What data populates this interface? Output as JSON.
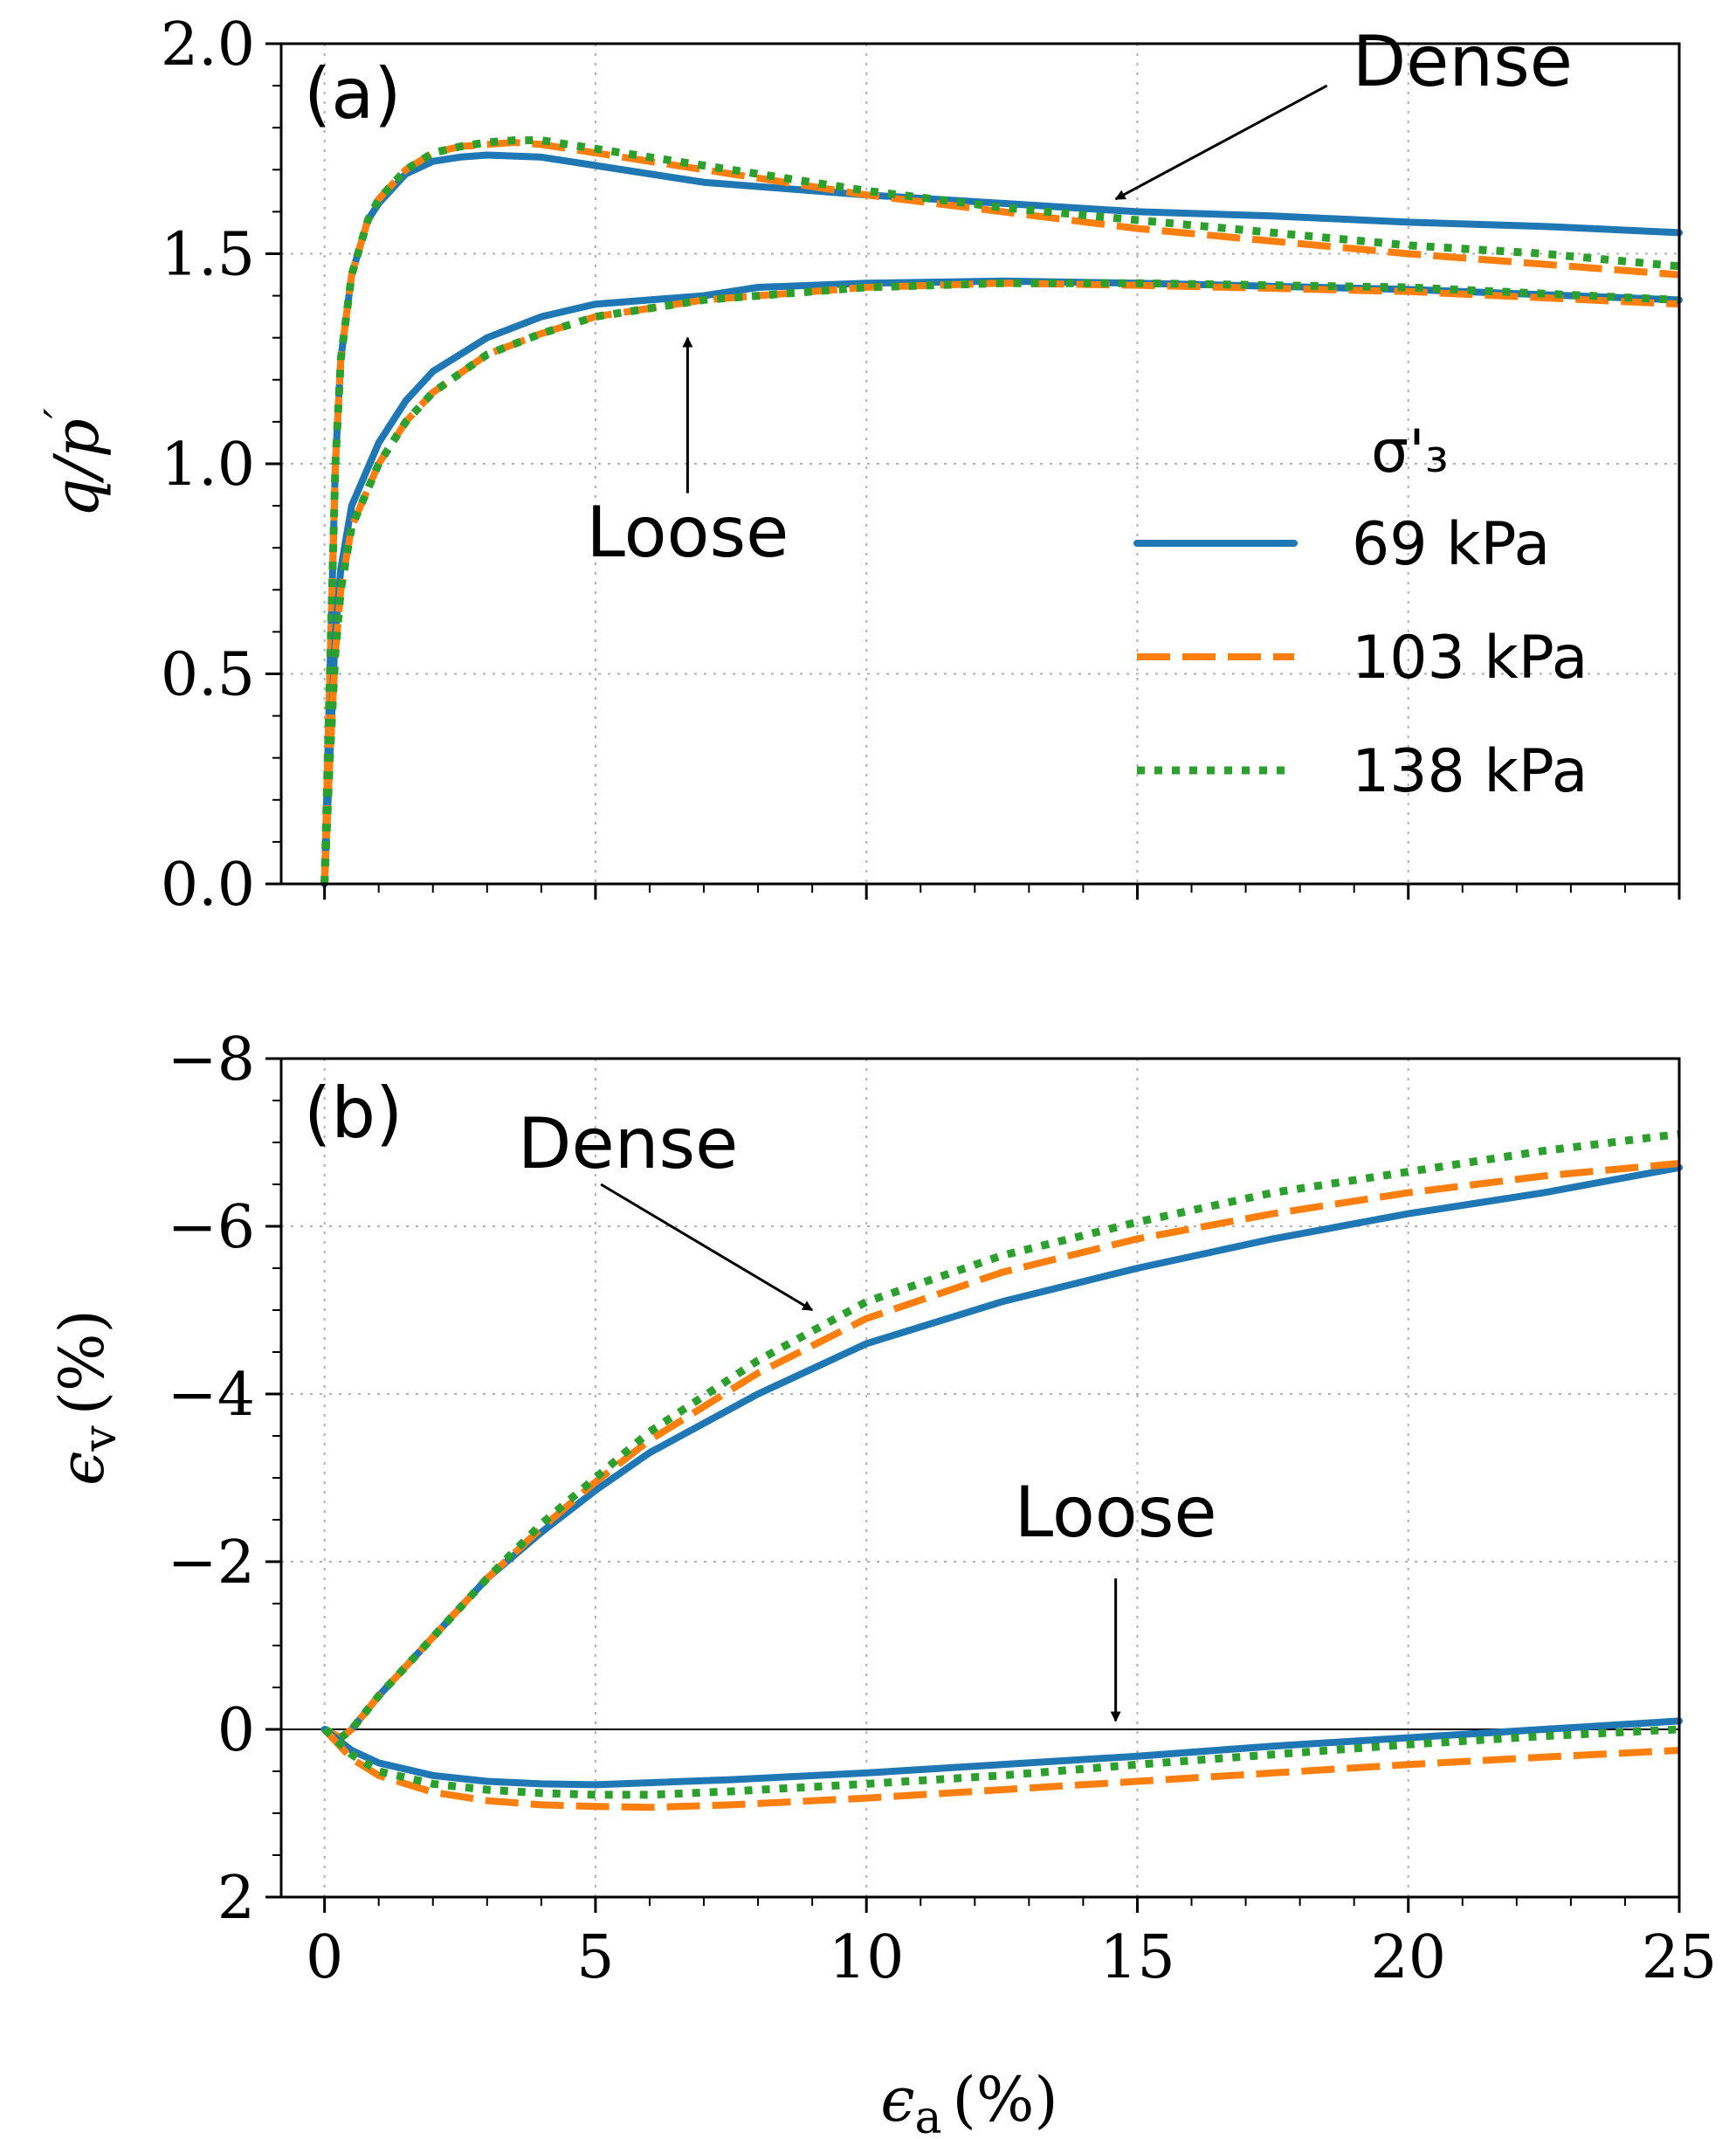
{
  "colors": {
    "s69": "#1f77b4",
    "s103": "#ff7f0e",
    "s138": "#2ca02c",
    "grid": "#b0b0b0"
  },
  "legend": {
    "title": "σ'₃",
    "entries": [
      {
        "key": "s69",
        "label": "69 kPa",
        "style": "solid"
      },
      {
        "key": "s103",
        "label": "103 kPa",
        "style": "dashed"
      },
      {
        "key": "s138",
        "label": "138 kPa",
        "style": "dotted"
      }
    ]
  },
  "chart_data": [
    {
      "type": "line",
      "panel_label": "(a)",
      "ylabel_main": "q/p",
      "ylabel_prime": "′",
      "xlim": [
        -0.8,
        25
      ],
      "ylim": [
        0,
        2
      ],
      "xticks": [
        0,
        5,
        10,
        15,
        20,
        25
      ],
      "yticks": [
        0,
        0.5,
        1.0,
        1.5,
        2.0
      ],
      "ytick_labels": [
        "0.0",
        "0.5",
        "1.0",
        "1.5",
        "2.0"
      ],
      "grid": true,
      "annotations": [
        {
          "text": "Dense",
          "text_at": [
            21,
            1.9
          ],
          "arrow_from": [
            18.5,
            1.9
          ],
          "arrow_to": [
            14.6,
            1.63
          ]
        },
        {
          "text": "Loose",
          "text_at": [
            6.7,
            0.78
          ],
          "arrow_from": [
            6.7,
            0.93
          ],
          "arrow_to": [
            6.7,
            1.3
          ]
        }
      ],
      "series": [
        {
          "name": "Dense 69 kPa",
          "key": "s69",
          "style": "solid",
          "x": [
            0,
            0.1,
            0.2,
            0.3,
            0.5,
            0.8,
            1.0,
            1.5,
            2.0,
            2.5,
            3.0,
            4.0,
            5.0,
            7.0,
            10.0,
            12.5,
            15.0,
            17.5,
            20.0,
            22.5,
            25.0
          ],
          "y": [
            0,
            0.5,
            1.0,
            1.25,
            1.45,
            1.58,
            1.62,
            1.69,
            1.72,
            1.73,
            1.735,
            1.73,
            1.71,
            1.67,
            1.64,
            1.62,
            1.6,
            1.59,
            1.575,
            1.565,
            1.55
          ]
        },
        {
          "name": "Dense 103 kPa",
          "key": "s103",
          "style": "dashed",
          "x": [
            0,
            0.1,
            0.2,
            0.3,
            0.5,
            0.8,
            1.0,
            1.5,
            2.0,
            2.5,
            3.0,
            3.5,
            4.0,
            5.0,
            7.0,
            10.0,
            12.5,
            15.0,
            17.5,
            20.0,
            22.5,
            25.0
          ],
          "y": [
            0,
            0.5,
            1.0,
            1.25,
            1.45,
            1.58,
            1.63,
            1.7,
            1.74,
            1.755,
            1.76,
            1.765,
            1.76,
            1.74,
            1.7,
            1.64,
            1.6,
            1.56,
            1.53,
            1.5,
            1.475,
            1.45
          ]
        },
        {
          "name": "Dense 138 kPa",
          "key": "s138",
          "style": "dotted",
          "x": [
            0,
            0.1,
            0.2,
            0.3,
            0.5,
            0.8,
            1.0,
            1.5,
            2.0,
            2.5,
            3.0,
            3.5,
            4.0,
            5.0,
            7.0,
            10.0,
            12.5,
            15.0,
            17.5,
            20.0,
            22.5,
            25.0
          ],
          "y": [
            0,
            0.5,
            1.0,
            1.25,
            1.45,
            1.58,
            1.63,
            1.7,
            1.74,
            1.755,
            1.765,
            1.77,
            1.77,
            1.75,
            1.71,
            1.65,
            1.61,
            1.58,
            1.55,
            1.52,
            1.5,
            1.47
          ]
        },
        {
          "name": "Loose 69 kPa",
          "key": "s69",
          "style": "solid",
          "x": [
            0,
            0.1,
            0.2,
            0.3,
            0.5,
            1.0,
            1.5,
            2.0,
            3.0,
            4.0,
            5.0,
            6.0,
            7.0,
            8.0,
            10.0,
            12.5,
            15.0,
            20.0,
            25.0
          ],
          "y": [
            0,
            0.3,
            0.6,
            0.75,
            0.9,
            1.05,
            1.15,
            1.22,
            1.3,
            1.35,
            1.38,
            1.39,
            1.4,
            1.42,
            1.43,
            1.435,
            1.43,
            1.415,
            1.39
          ]
        },
        {
          "name": "Loose 103 kPa",
          "key": "s103",
          "style": "dashed",
          "x": [
            0,
            0.1,
            0.2,
            0.3,
            0.5,
            1.0,
            1.5,
            2.0,
            3.0,
            4.0,
            5.0,
            6.0,
            7.0,
            8.0,
            10.0,
            12.5,
            15.0,
            20.0,
            25.0
          ],
          "y": [
            0,
            0.3,
            0.55,
            0.7,
            0.85,
            1.0,
            1.1,
            1.17,
            1.26,
            1.31,
            1.35,
            1.37,
            1.39,
            1.4,
            1.42,
            1.43,
            1.425,
            1.41,
            1.38
          ]
        },
        {
          "name": "Loose 138 kPa",
          "key": "s138",
          "style": "dotted",
          "x": [
            0,
            0.1,
            0.2,
            0.3,
            0.5,
            1.0,
            1.5,
            2.0,
            3.0,
            4.0,
            5.0,
            6.0,
            7.0,
            8.0,
            10.0,
            12.5,
            15.0,
            20.0,
            25.0
          ],
          "y": [
            0,
            0.3,
            0.55,
            0.7,
            0.85,
            1.0,
            1.1,
            1.17,
            1.26,
            1.31,
            1.35,
            1.37,
            1.39,
            1.4,
            1.42,
            1.43,
            1.43,
            1.42,
            1.39
          ]
        }
      ]
    },
    {
      "type": "line",
      "panel_label": "(b)",
      "ylabel_main": "ϵ",
      "ylabel_sub": "v",
      "ylabel_unit": "(%)",
      "xlabel_main": "ϵ",
      "xlabel_sub": "a",
      "xlabel_unit": "(%)",
      "xlim": [
        -0.8,
        25
      ],
      "ylim": [
        2,
        -8
      ],
      "xticks": [
        0,
        5,
        10,
        15,
        20,
        25
      ],
      "xtick_labels": [
        "0",
        "5",
        "10",
        "15",
        "20",
        "25"
      ],
      "yticks": [
        2,
        0,
        -2,
        -4,
        -6,
        -8
      ],
      "ytick_labels": [
        "2",
        "0",
        "−2",
        "−4",
        "−6",
        "−8"
      ],
      "grid": true,
      "zero_line": 0,
      "annotations": [
        {
          "text": "Dense",
          "text_at": [
            5.6,
            -6.7
          ],
          "arrow_from": [
            5.1,
            -6.5
          ],
          "arrow_to": [
            9.0,
            -5.0
          ]
        },
        {
          "text": "Loose",
          "text_at": [
            14.6,
            -2.3
          ],
          "arrow_from": [
            14.6,
            -1.8
          ],
          "arrow_to": [
            14.6,
            -0.1
          ]
        }
      ],
      "series": [
        {
          "name": "Dense 69 kPa",
          "key": "s69",
          "style": "solid",
          "x": [
            0,
            0.3,
            0.5,
            1,
            2,
            3,
            4,
            5,
            6,
            8,
            10,
            12.5,
            15,
            17.5,
            20,
            22.5,
            25
          ],
          "y": [
            0,
            0.1,
            0.0,
            -0.4,
            -1.1,
            -1.8,
            -2.35,
            -2.85,
            -3.3,
            -4.0,
            -4.6,
            -5.1,
            -5.5,
            -5.85,
            -6.15,
            -6.4,
            -6.7
          ]
        },
        {
          "name": "Dense 103 kPa",
          "key": "s103",
          "style": "dashed",
          "x": [
            0,
            0.3,
            0.5,
            1,
            2,
            3,
            4,
            5,
            6,
            8,
            10,
            12.5,
            15,
            17.5,
            20,
            22.5,
            25
          ],
          "y": [
            0,
            0.1,
            0.0,
            -0.4,
            -1.1,
            -1.8,
            -2.4,
            -2.95,
            -3.45,
            -4.25,
            -4.9,
            -5.45,
            -5.85,
            -6.15,
            -6.4,
            -6.6,
            -6.75
          ]
        },
        {
          "name": "Dense 138 kPa",
          "key": "s138",
          "style": "dotted",
          "x": [
            0,
            0.3,
            0.5,
            1,
            2,
            3,
            4,
            5,
            6,
            8,
            10,
            12.5,
            15,
            17.5,
            20,
            22.5,
            25
          ],
          "y": [
            0,
            0.1,
            0.0,
            -0.4,
            -1.1,
            -1.8,
            -2.45,
            -3.0,
            -3.55,
            -4.4,
            -5.1,
            -5.65,
            -6.05,
            -6.4,
            -6.65,
            -6.9,
            -7.1
          ]
        },
        {
          "name": "Loose 69 kPa",
          "key": "s69",
          "style": "solid",
          "x": [
            0,
            0.5,
            1,
            2,
            3,
            4,
            5,
            7.5,
            10,
            12.5,
            15,
            17.5,
            20,
            22.5,
            25
          ],
          "y": [
            0,
            0.25,
            0.4,
            0.55,
            0.62,
            0.65,
            0.66,
            0.6,
            0.52,
            0.42,
            0.32,
            0.2,
            0.1,
            0.0,
            -0.1
          ]
        },
        {
          "name": "Loose 103 kPa",
          "key": "s103",
          "style": "dashed",
          "x": [
            0,
            0.5,
            1,
            2,
            3,
            4,
            5,
            6,
            7.5,
            10,
            12.5,
            15,
            17.5,
            20,
            22.5,
            25
          ],
          "y": [
            0,
            0.35,
            0.55,
            0.75,
            0.85,
            0.9,
            0.92,
            0.93,
            0.9,
            0.82,
            0.72,
            0.62,
            0.52,
            0.42,
            0.33,
            0.25
          ]
        },
        {
          "name": "Loose 138 kPa",
          "key": "s138",
          "style": "dotted",
          "x": [
            0,
            0.5,
            1,
            2,
            3,
            4,
            5,
            6,
            7.5,
            10,
            12.5,
            15,
            17.5,
            20,
            22.5,
            25
          ],
          "y": [
            0,
            0.3,
            0.5,
            0.65,
            0.72,
            0.76,
            0.78,
            0.78,
            0.74,
            0.65,
            0.55,
            0.42,
            0.3,
            0.18,
            0.08,
            0.0
          ]
        }
      ]
    }
  ]
}
